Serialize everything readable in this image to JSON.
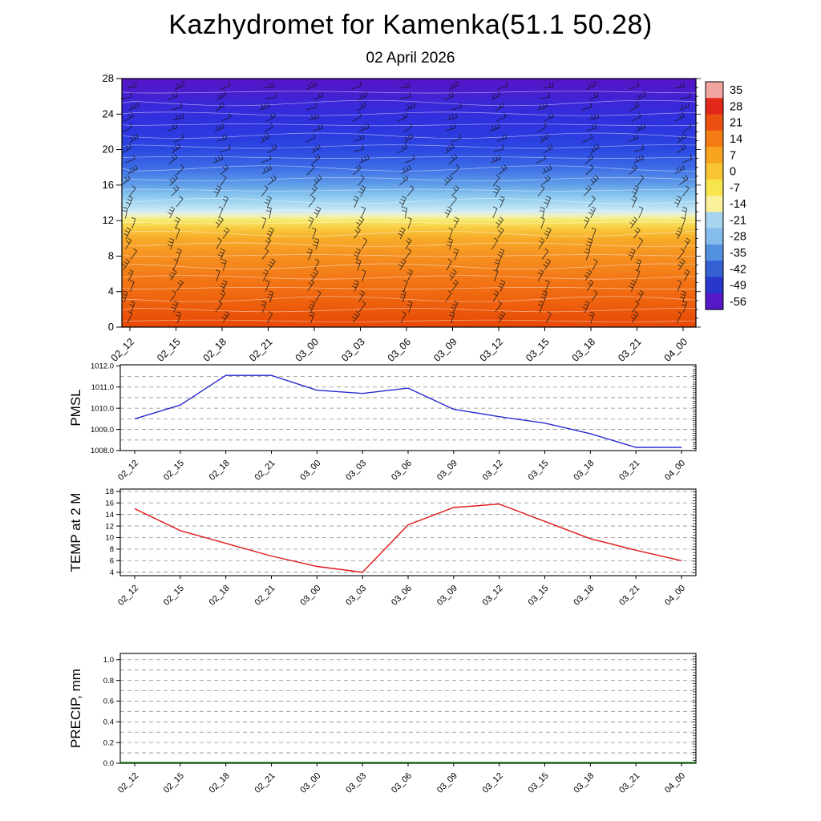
{
  "header": {
    "title": "Kazhydromet for Kamenka(51.1 50.28)",
    "subtitle": "02 April 2026"
  },
  "time_axis": {
    "labels": [
      "02_12",
      "02_15",
      "02_18",
      "02_21",
      "03_00",
      "03_03",
      "03_06",
      "03_09",
      "03_12",
      "03_15",
      "03_18",
      "03_21",
      "04_00"
    ]
  },
  "style": {
    "grid_color": "#8c8c8c",
    "axis_color": "#000000",
    "background": "#ffffff"
  },
  "chart_data": [
    {
      "type": "heatmap",
      "name": "upper-air temperature cross-section with wind barbs",
      "ylim": [
        0,
        28
      ],
      "yticks": [
        "0",
        "4",
        "8",
        "12",
        "16",
        "20",
        "24",
        "28"
      ],
      "x_categories": [
        "02_12",
        "02_15",
        "02_18",
        "02_21",
        "03_00",
        "03_03",
        "03_06",
        "03_09",
        "03_12",
        "03_15",
        "03_18",
        "03_21",
        "04_00"
      ],
      "contour_color": "#ffffff",
      "wind_barb_color": "#141414",
      "fill_gradient_stops": [
        {
          "offset": 0.0,
          "color": "#5714c6"
        },
        {
          "offset": 0.05,
          "color": "#4b1ccf"
        },
        {
          "offset": 0.1,
          "color": "#3a28d8"
        },
        {
          "offset": 0.16,
          "color": "#3130de"
        },
        {
          "offset": 0.215,
          "color": "#2d38e0"
        },
        {
          "offset": 0.285,
          "color": "#2c48e2"
        },
        {
          "offset": 0.355,
          "color": "#3b6ae6"
        },
        {
          "offset": 0.425,
          "color": "#5f9ce8"
        },
        {
          "offset": 0.465,
          "color": "#84c2ee"
        },
        {
          "offset": 0.5,
          "color": "#a6d8f2"
        },
        {
          "offset": 0.535,
          "color": "#cfeaf6"
        },
        {
          "offset": 0.552,
          "color": "#f2f2bc"
        },
        {
          "offset": 0.572,
          "color": "#f8e868"
        },
        {
          "offset": 0.605,
          "color": "#f8c83e"
        },
        {
          "offset": 0.645,
          "color": "#f8aa28"
        },
        {
          "offset": 0.715,
          "color": "#f69020"
        },
        {
          "offset": 0.82,
          "color": "#f27414"
        },
        {
          "offset": 0.93,
          "color": "#ec5a0c"
        },
        {
          "offset": 1.0,
          "color": "#e64806"
        }
      ],
      "colorbar": {
        "tick_labels": [
          "35",
          "28",
          "21",
          "14",
          "7",
          "0",
          "-7",
          "-14",
          "-21",
          "-28",
          "-35",
          "-42",
          "-49",
          "-56"
        ],
        "band_colors_top_to_bottom": [
          "#f2a4a0",
          "#e22818",
          "#ec5010",
          "#f47c14",
          "#f8a420",
          "#f8c434",
          "#f8e44c",
          "#faf29a",
          "#a8d4f0",
          "#84bcec",
          "#5490e0",
          "#3460d4",
          "#2838cc",
          "#5518c8"
        ]
      }
    },
    {
      "type": "line",
      "name": "PMSL",
      "ylabel": "PMSL",
      "ylim": [
        1008.0,
        1012.05
      ],
      "yticks": [
        "1008.0",
        "1009.0",
        "1010.0",
        "1011.0",
        "1012.0"
      ],
      "gridlines": [
        1008.5,
        1009.0,
        1009.5,
        1010.0,
        1010.5,
        1011.0,
        1011.5
      ],
      "x_categories": [
        "02_12",
        "02_15",
        "02_18",
        "02_21",
        "03_00",
        "03_03",
        "03_06",
        "03_09",
        "03_12",
        "03_15",
        "03_18",
        "03_21",
        "04_00"
      ],
      "values": [
        1009.5,
        1010.15,
        1011.55,
        1011.55,
        1010.85,
        1010.7,
        1010.95,
        1009.95,
        1009.6,
        1009.3,
        1008.8,
        1008.15,
        1008.15
      ],
      "line_color": "#2a2ad2",
      "extend_to_borders": false
    },
    {
      "type": "line",
      "name": "TEMP at 2 M",
      "ylabel": "TEMP at 2 M",
      "ylim": [
        3.4,
        18.4
      ],
      "yticks": [
        "4",
        "6",
        "8",
        "10",
        "12",
        "14",
        "16",
        "18"
      ],
      "gridlines": [
        4,
        6,
        8,
        10,
        12,
        14,
        16,
        18
      ],
      "x_categories": [
        "02_12",
        "02_15",
        "02_18",
        "02_21",
        "03_00",
        "03_03",
        "03_06",
        "03_09",
        "03_12",
        "03_15",
        "03_18",
        "03_21",
        "04_00"
      ],
      "values": [
        15.0,
        11.2,
        9.0,
        6.8,
        5.0,
        4.0,
        12.2,
        15.2,
        15.8,
        12.8,
        9.8,
        7.8,
        6.0
      ],
      "line_color": "#e01818",
      "extend_to_borders": false
    },
    {
      "type": "line",
      "name": "PRECIP, mm",
      "ylabel": "PRECIP, mm",
      "ylim": [
        0.0,
        1.06
      ],
      "yticks": [
        "0.0",
        "0.2",
        "0.4",
        "0.6",
        "0.8",
        "1.0"
      ],
      "gridlines": [
        0.1,
        0.2,
        0.3,
        0.4,
        0.5,
        0.6,
        0.7,
        0.8,
        0.9,
        1.0
      ],
      "x_categories": [
        "02_12",
        "02_15",
        "02_18",
        "02_21",
        "03_00",
        "03_03",
        "03_06",
        "03_09",
        "03_12",
        "03_15",
        "03_18",
        "03_21",
        "04_00"
      ],
      "values": [
        0,
        0,
        0,
        0,
        0,
        0,
        0,
        0,
        0,
        0,
        0,
        0,
        0
      ],
      "line_color": "#007700",
      "extend_to_borders": true
    }
  ]
}
